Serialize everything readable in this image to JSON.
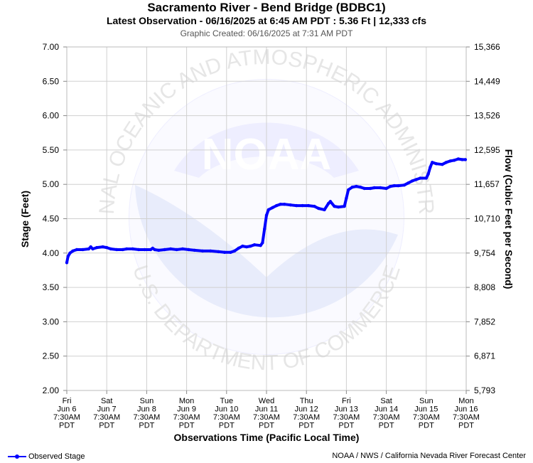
{
  "header": {
    "title": "Sacramento River - Bend Bridge (BDBC1)",
    "subtitle": "Latest Observation - 06/16/2025 at 6:45 AM PDT : 5.36 Ft | 12,333 cfs",
    "created": "Graphic Created: 06/16/2025 at 7:31 AM PDT"
  },
  "watermark": {
    "logo_text": "NOAA",
    "ring_text_top": "NATIONAL OCEANIC AND ATMOSPHERIC ADMINISTRATION",
    "ring_text_bottom": "U.S. DEPARTMENT OF COMMERCE"
  },
  "legend": {
    "label": "Observed Stage"
  },
  "credit": "NOAA / NWS / California Nevada River Forecast Center",
  "colors": {
    "series": "#0000ff",
    "grid": "#d0d0d0",
    "watermark": "#eeeeff"
  },
  "chart_data": {
    "type": "line",
    "xlabel": "Observations Time (Pacific Local Time)",
    "ylabel": "Stage (Feet)",
    "y2label": "Flow (Cubic Feet per Second)",
    "xlim": [
      0,
      10
    ],
    "ylim": [
      2.0,
      7.0
    ],
    "grid": true,
    "legend_position": "bottom-left",
    "x_ticks": [
      {
        "x": 0,
        "lines": [
          "Fri",
          "Jun 6",
          "7:30AM",
          "PDT"
        ]
      },
      {
        "x": 1,
        "lines": [
          "Sat",
          "Jun 7",
          "7:30AM",
          "PDT"
        ]
      },
      {
        "x": 2,
        "lines": [
          "Sun",
          "Jun 8",
          "7:30AM",
          "PDT"
        ]
      },
      {
        "x": 3,
        "lines": [
          "Mon",
          "Jun 9",
          "7:30AM",
          "PDT"
        ]
      },
      {
        "x": 4,
        "lines": [
          "Tue",
          "Jun 10",
          "7:30AM",
          "PDT"
        ]
      },
      {
        "x": 5,
        "lines": [
          "Wed",
          "Jun 11",
          "7:30AM",
          "PDT"
        ]
      },
      {
        "x": 6,
        "lines": [
          "Thu",
          "Jun 12",
          "7:30AM",
          "PDT"
        ]
      },
      {
        "x": 7,
        "lines": [
          "Fri",
          "Jun 13",
          "7:30AM",
          "PDT"
        ]
      },
      {
        "x": 8,
        "lines": [
          "Sat",
          "Jun 14",
          "7:30AM",
          "PDT"
        ]
      },
      {
        "x": 9,
        "lines": [
          "Sun",
          "Jun 15",
          "7:30AM",
          "PDT"
        ]
      },
      {
        "x": 10,
        "lines": [
          "Mon",
          "Jun 16",
          "7:30AM",
          "PDT"
        ]
      }
    ],
    "y_ticks": [
      "2.00",
      "2.50",
      "3.00",
      "3.50",
      "4.00",
      "4.50",
      "5.00",
      "5.50",
      "6.00",
      "6.50",
      "7.00"
    ],
    "y2_ticks": [
      "5,793",
      "6,871",
      "7,852",
      "8,808",
      "9,754",
      "10,710",
      "11,657",
      "12,595",
      "13,526",
      "14,449",
      "15,366"
    ],
    "series": [
      {
        "name": "Observed Stage",
        "points": [
          [
            0.0,
            3.86
          ],
          [
            0.03,
            3.95
          ],
          [
            0.08,
            4.0
          ],
          [
            0.15,
            4.03
          ],
          [
            0.25,
            4.05
          ],
          [
            0.4,
            4.05
          ],
          [
            0.55,
            4.06
          ],
          [
            0.6,
            4.09
          ],
          [
            0.65,
            4.06
          ],
          [
            0.75,
            4.08
          ],
          [
            0.9,
            4.09
          ],
          [
            1.0,
            4.08
          ],
          [
            1.1,
            4.06
          ],
          [
            1.25,
            4.05
          ],
          [
            1.4,
            4.05
          ],
          [
            1.5,
            4.06
          ],
          [
            1.65,
            4.06
          ],
          [
            1.8,
            4.05
          ],
          [
            1.95,
            4.05
          ],
          [
            2.1,
            4.05
          ],
          [
            2.15,
            4.07
          ],
          [
            2.2,
            4.05
          ],
          [
            2.3,
            4.04
          ],
          [
            2.45,
            4.05
          ],
          [
            2.6,
            4.06
          ],
          [
            2.75,
            4.05
          ],
          [
            2.9,
            4.06
          ],
          [
            3.05,
            4.05
          ],
          [
            3.2,
            4.04
          ],
          [
            3.4,
            4.03
          ],
          [
            3.6,
            4.03
          ],
          [
            3.8,
            4.02
          ],
          [
            3.95,
            4.01
          ],
          [
            4.1,
            4.01
          ],
          [
            4.2,
            4.03
          ],
          [
            4.3,
            4.07
          ],
          [
            4.4,
            4.1
          ],
          [
            4.5,
            4.09
          ],
          [
            4.6,
            4.1
          ],
          [
            4.7,
            4.12
          ],
          [
            4.85,
            4.11
          ],
          [
            4.9,
            4.15
          ],
          [
            4.95,
            4.35
          ],
          [
            5.0,
            4.55
          ],
          [
            5.05,
            4.63
          ],
          [
            5.15,
            4.66
          ],
          [
            5.25,
            4.69
          ],
          [
            5.35,
            4.71
          ],
          [
            5.45,
            4.71
          ],
          [
            5.6,
            4.7
          ],
          [
            5.75,
            4.69
          ],
          [
            5.9,
            4.69
          ],
          [
            6.05,
            4.69
          ],
          [
            6.2,
            4.68
          ],
          [
            6.3,
            4.65
          ],
          [
            6.45,
            4.63
          ],
          [
            6.55,
            4.72
          ],
          [
            6.6,
            4.75
          ],
          [
            6.7,
            4.68
          ],
          [
            6.8,
            4.67
          ],
          [
            6.95,
            4.68
          ],
          [
            7.0,
            4.8
          ],
          [
            7.05,
            4.92
          ],
          [
            7.15,
            4.96
          ],
          [
            7.25,
            4.97
          ],
          [
            7.35,
            4.96
          ],
          [
            7.45,
            4.94
          ],
          [
            7.6,
            4.94
          ],
          [
            7.7,
            4.95
          ],
          [
            7.85,
            4.95
          ],
          [
            8.0,
            4.94
          ],
          [
            8.1,
            4.97
          ],
          [
            8.2,
            4.98
          ],
          [
            8.3,
            4.98
          ],
          [
            8.45,
            4.99
          ],
          [
            8.55,
            5.02
          ],
          [
            8.65,
            5.05
          ],
          [
            8.75,
            5.07
          ],
          [
            8.85,
            5.09
          ],
          [
            9.0,
            5.09
          ],
          [
            9.05,
            5.15
          ],
          [
            9.1,
            5.25
          ],
          [
            9.15,
            5.32
          ],
          [
            9.25,
            5.3
          ],
          [
            9.4,
            5.29
          ],
          [
            9.5,
            5.32
          ],
          [
            9.6,
            5.34
          ],
          [
            9.7,
            5.35
          ],
          [
            9.8,
            5.37
          ],
          [
            9.9,
            5.36
          ],
          [
            9.98,
            5.36
          ]
        ]
      }
    ]
  }
}
